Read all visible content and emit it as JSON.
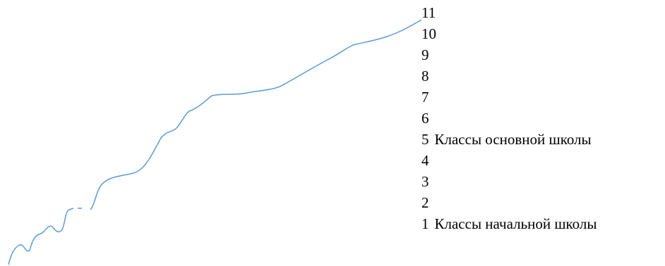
{
  "levels": [
    {
      "number": "11"
    },
    {
      "number": "10"
    },
    {
      "number": "9"
    },
    {
      "number": "8"
    },
    {
      "number": "7"
    },
    {
      "number": "6"
    },
    {
      "number": "5",
      "label": "Классы основной школы"
    },
    {
      "number": "4"
    },
    {
      "number": "3"
    },
    {
      "number": "2"
    },
    {
      "number": "1",
      "label": "Классы начальной школы"
    }
  ]
}
